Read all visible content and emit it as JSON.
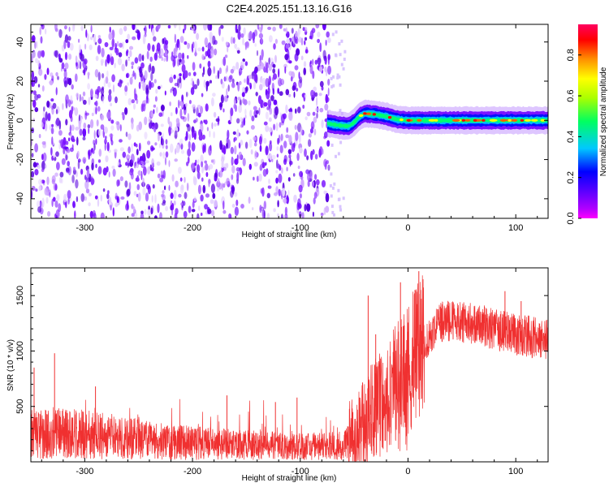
{
  "title": "C2E4.2025.151.13.16.G16",
  "colors": {
    "snr_line": "#f03030",
    "spectrogram_noise": "#6a00ff",
    "colorbar": [
      "#ff00ff",
      "#5a00ff",
      "#0000ff",
      "#00c8ff",
      "#00ff60",
      "#aaff00",
      "#ffff00",
      "#ff9000",
      "#ff0000",
      "#ff0060"
    ]
  },
  "chart_data": [
    {
      "type": "heatmap",
      "xlabel": "Height of straight line (km)",
      "ylabel": "Frequency (Hz)",
      "xlim": [
        -350,
        130
      ],
      "ylim": [
        -50,
        49
      ],
      "xticks": [
        -300,
        -200,
        -100,
        0,
        100
      ],
      "xtick_labels": [
        "-300",
        "-200",
        "-100",
        "0",
        "100"
      ],
      "yticks": [
        -40,
        -20,
        0,
        20,
        40
      ],
      "ytick_labels": [
        "-40",
        "-20",
        "0",
        "20",
        "40"
      ],
      "noise_region_x": [
        -350,
        -73
      ],
      "signal_track": {
        "x": [
          -75,
          -65,
          -55,
          -50,
          -45,
          -40,
          -30,
          -20,
          -10,
          0,
          20,
          40,
          60,
          80,
          100,
          120,
          130
        ],
        "freq": [
          -1.5,
          -2.5,
          -3,
          -1,
          2,
          3.5,
          3,
          2,
          0.5,
          0,
          0,
          0,
          0,
          0,
          0,
          0,
          0
        ]
      },
      "colorbar": {
        "label": "Normalized spectral amplitude",
        "range": [
          0,
          0.95
        ],
        "ticks": [
          0.0,
          0.2,
          0.4,
          0.6,
          0.8
        ],
        "tick_labels": [
          "0.0",
          "0.2",
          "0.4",
          "0.6",
          "0.8"
        ]
      }
    },
    {
      "type": "line",
      "xlabel": "Height of straight line (km)",
      "ylabel": "SNR (10 * v/v)",
      "xlim": [
        -350,
        130
      ],
      "ylim": [
        0,
        1750
      ],
      "xticks": [
        -300,
        -200,
        -100,
        0,
        100
      ],
      "xtick_labels": [
        "-300",
        "-200",
        "-100",
        "0",
        "100"
      ],
      "yticks": [
        500,
        1000,
        1500
      ],
      "ytick_labels": [
        "500",
        "1000",
        "1500"
      ],
      "trend": {
        "x": [
          -350,
          -330,
          -300,
          -250,
          -200,
          -150,
          -100,
          -80,
          -60,
          -50,
          -40,
          -30,
          -20,
          -10,
          0,
          10,
          20,
          30,
          40,
          60,
          80,
          100,
          130
        ],
        "y": [
          250,
          260,
          250,
          200,
          170,
          150,
          140,
          140,
          150,
          200,
          350,
          500,
          600,
          700,
          850,
          1000,
          1150,
          1250,
          1280,
          1250,
          1200,
          1150,
          1100
        ]
      },
      "spikes": {
        "x": [
          -347,
          -328,
          -290,
          -168,
          -123,
          -103,
          -37,
          -30,
          -7,
          10,
          30,
          90,
          105
        ],
        "y": [
          850,
          980,
          680,
          600,
          540,
          580,
          1500,
          1150,
          1620,
          1720,
          1400,
          1540,
          1450
        ]
      }
    }
  ]
}
